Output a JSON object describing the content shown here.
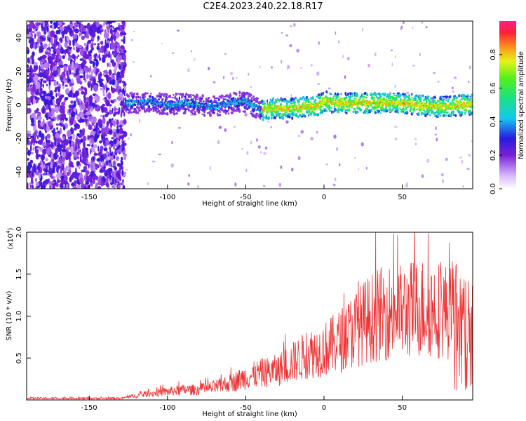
{
  "title": "C2E4.2023.240.22.18.R17",
  "chart_data": [
    {
      "type": "heatmap",
      "xlabel": "Height of straight line (km)",
      "ylabel": "Frequency (Hz)",
      "xlim": [
        -190,
        95
      ],
      "ylim": [
        -50,
        50
      ],
      "xticks": [
        "-150",
        "-100",
        "-50",
        "0",
        "50"
      ],
      "yticks": [
        "-40",
        "-20",
        "0",
        "20",
        "40"
      ],
      "colorbar": {
        "label": "Normalized spectral amplitude",
        "range": [
          0,
          1
        ],
        "ticks": [
          "0.0",
          "0.2",
          "0.4",
          "0.6",
          "0.8"
        ]
      },
      "trace": {
        "x": [
          -125,
          -110,
          -100,
          -90,
          -80,
          -70,
          -60,
          -50,
          -45,
          -40,
          -30,
          -20,
          -10,
          -5,
          0,
          10,
          20,
          30,
          40,
          50,
          60,
          70,
          80,
          92
        ],
        "frequency": [
          1,
          2,
          0,
          1,
          0,
          -1,
          1,
          2,
          -1,
          -3,
          -2,
          -2,
          -1,
          -1,
          2,
          1,
          1,
          1,
          1,
          1,
          0,
          -1,
          -1,
          0
        ]
      },
      "noise_region_x": [
        -190,
        -127
      ]
    },
    {
      "type": "line",
      "xlabel": "Height of straight line (km)",
      "ylabel": "SNR (10 * v/v)",
      "multiplier_label": "(x10",
      "multiplier_exp": "4",
      "multiplier_close": ")",
      "xlim": [
        -190,
        95
      ],
      "ylim": [
        0,
        2.0
      ],
      "xticks": [
        "-150",
        "-100",
        "-50",
        "0",
        "50"
      ],
      "yticks": [
        "0.5",
        "1.0",
        "1.5",
        "2.0"
      ],
      "color": "#ee3333",
      "envelope": {
        "x": [
          -190,
          -130,
          -120,
          -110,
          -100,
          -90,
          -80,
          -70,
          -60,
          -50,
          -40,
          -30,
          -20,
          -10,
          0,
          10,
          20,
          30,
          40,
          50,
          60,
          70,
          80,
          85,
          90,
          95
        ],
        "y": [
          0.02,
          0.02,
          0.05,
          0.08,
          0.1,
          0.12,
          0.12,
          0.15,
          0.2,
          0.27,
          0.32,
          0.35,
          0.45,
          0.55,
          0.6,
          0.7,
          0.85,
          0.98,
          1.05,
          1.05,
          1.1,
          1.1,
          1.05,
          1.0,
          0.95,
          0.9
        ]
      }
    }
  ]
}
